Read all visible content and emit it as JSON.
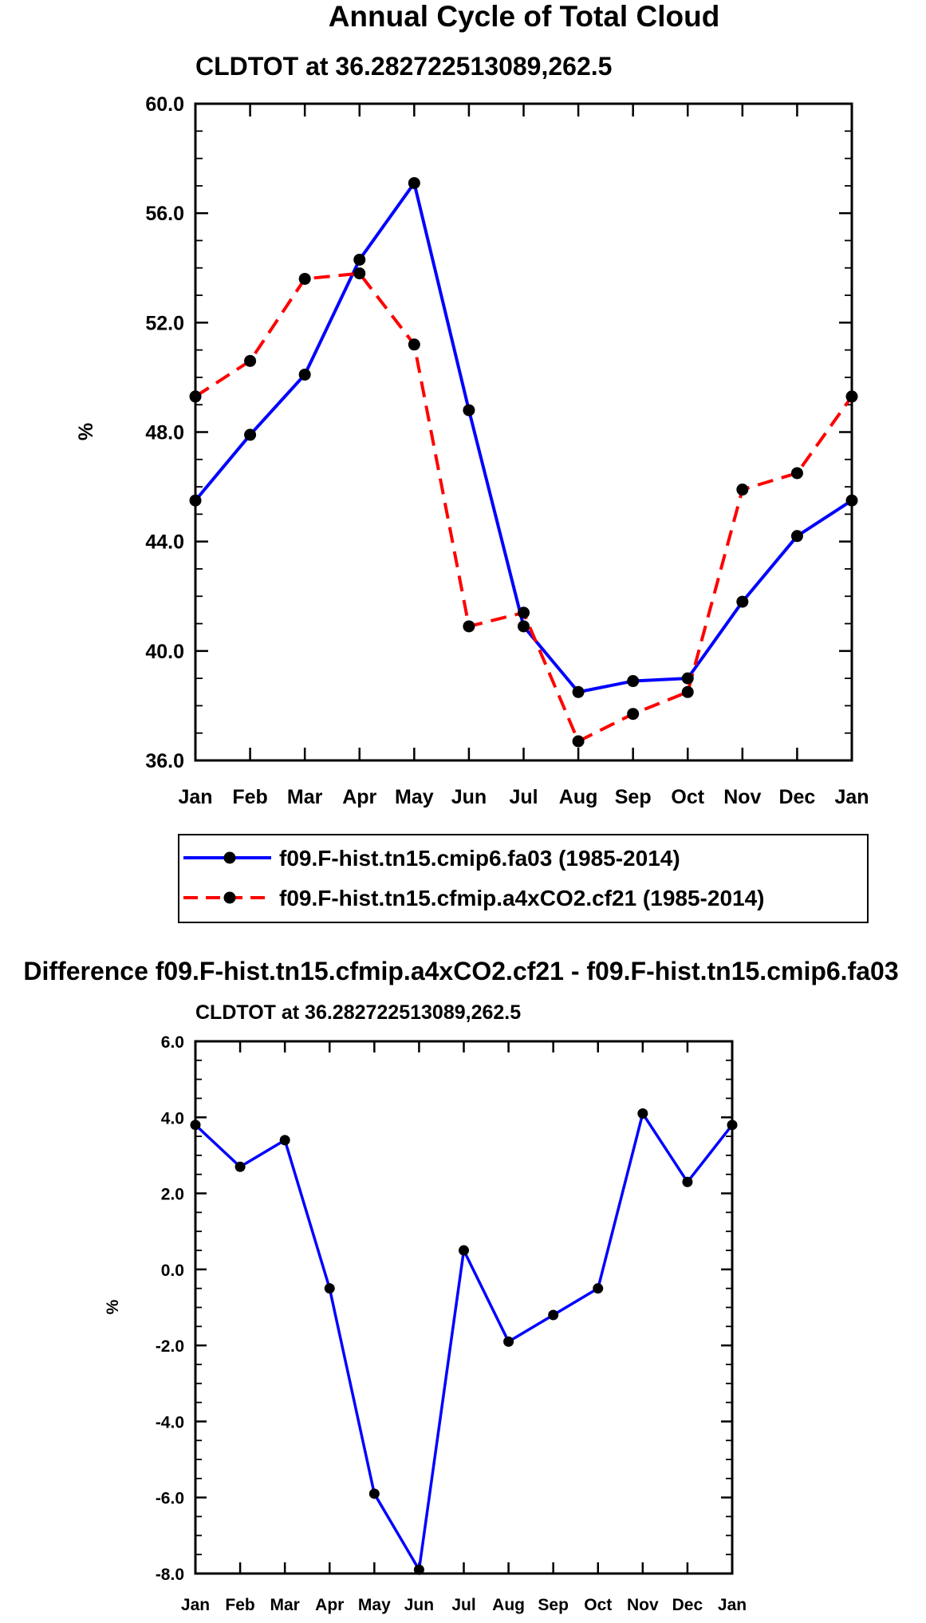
{
  "chart_data": [
    {
      "type": "line",
      "title": "Annual Cycle of Total Cloud",
      "subtitle": "CLDTOT at 36.282722513089,262.5",
      "xlabel": "",
      "ylabel": "%",
      "categories": [
        "Jan",
        "Feb",
        "Mar",
        "Apr",
        "May",
        "Jun",
        "Jul",
        "Aug",
        "Sep",
        "Oct",
        "Nov",
        "Dec",
        "Jan"
      ],
      "ylim": [
        36.0,
        60.0
      ],
      "yticks": [
        "36.0",
        "40.0",
        "44.0",
        "48.0",
        "52.0",
        "56.0",
        "60.0"
      ],
      "series": [
        {
          "name": "f09.F-hist.tn15.cmip6.fa03 (1985-2014)",
          "color": "#0000ff",
          "dash": "solid",
          "values": [
            45.5,
            47.9,
            50.1,
            54.3,
            57.1,
            48.8,
            40.9,
            38.5,
            38.9,
            39.0,
            41.8,
            44.2,
            45.5
          ]
        },
        {
          "name": "f09.F-hist.tn15.cfmip.a4xCO2.cf21 (1985-2014)",
          "color": "#ff0000",
          "dash": "dashed",
          "values": [
            49.3,
            50.6,
            53.6,
            53.8,
            51.2,
            40.9,
            41.4,
            36.7,
            37.7,
            38.5,
            45.9,
            46.5,
            49.3
          ]
        }
      ]
    },
    {
      "type": "line",
      "title": "Difference f09.F-hist.tn15.cfmip.a4xCO2.cf21 - f09.F-hist.tn15.cmip6.fa03",
      "subtitle": "CLDTOT at 36.282722513089,262.5",
      "xlabel": "",
      "ylabel": "%",
      "categories": [
        "Jan",
        "Feb",
        "Mar",
        "Apr",
        "May",
        "Jun",
        "Jul",
        "Aug",
        "Sep",
        "Oct",
        "Nov",
        "Dec",
        "Jan"
      ],
      "ylim": [
        -8.0,
        6.0
      ],
      "yticks": [
        "-8.0",
        "-6.0",
        "-4.0",
        "-2.0",
        "0.0",
        "2.0",
        "4.0",
        "6.0"
      ],
      "series": [
        {
          "name": "difference",
          "color": "#0000ff",
          "dash": "solid",
          "values": [
            3.8,
            2.7,
            3.4,
            -0.5,
            -5.9,
            -7.9,
            0.5,
            -1.9,
            -1.2,
            -0.5,
            4.1,
            2.3,
            3.8
          ]
        }
      ]
    }
  ]
}
